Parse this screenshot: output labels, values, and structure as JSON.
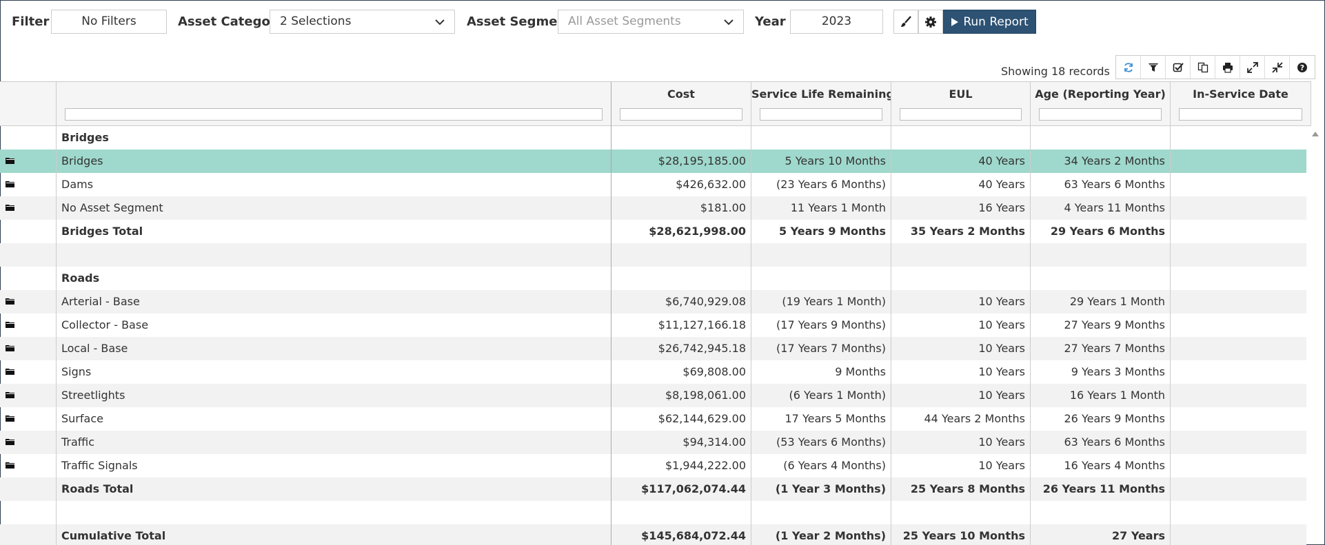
{
  "toolbar": {
    "filter_label": "Filter",
    "filter_value": "No Filters",
    "category_label": "Asset Category",
    "category_value": "2 Selections",
    "segment_label": "Asset Segment",
    "segment_placeholder": "All Asset Segments",
    "year_label": "Year",
    "year_value": "2023",
    "run_label": "Run Report",
    "icons": [
      "brush-icon",
      "gear-icon",
      "play-icon"
    ]
  },
  "records_text": "Showing 18 records",
  "grid_tools": [
    "refresh-icon",
    "filter-icon",
    "check-icon",
    "copy-icon",
    "print-icon",
    "expand-icon",
    "collapse-icon",
    "help-icon"
  ],
  "columns": [
    "",
    "Cost",
    "Service Life Remaining (...",
    "EUL",
    "Age (Reporting Year)",
    "In-Service Date"
  ],
  "rows": [
    {
      "kind": "group",
      "name": "Bridges",
      "cost": "",
      "slr": "",
      "eul": "",
      "age": "",
      "isd": ""
    },
    {
      "kind": "item",
      "name": "Bridges",
      "cost": "$28,195,185.00",
      "slr": "5 Years 10 Months",
      "eul": "40 Years",
      "age": "34 Years 2 Months",
      "isd": "",
      "selected": true
    },
    {
      "kind": "item",
      "name": "Dams",
      "cost": "$426,632.00",
      "slr": "(23 Years 6 Months)",
      "eul": "40 Years",
      "age": "63 Years 6 Months",
      "isd": ""
    },
    {
      "kind": "item",
      "name": "No Asset Segment",
      "cost": "$181.00",
      "slr": "11 Years 1 Month",
      "eul": "16 Years",
      "age": "4 Years 11 Months",
      "isd": ""
    },
    {
      "kind": "total",
      "name": "Bridges Total",
      "cost": "$28,621,998.00",
      "slr": "5 Years 9 Months",
      "eul": "35 Years 2 Months",
      "age": "29 Years 6 Months",
      "isd": ""
    },
    {
      "kind": "blank",
      "name": "",
      "cost": "",
      "slr": "",
      "eul": "",
      "age": "",
      "isd": ""
    },
    {
      "kind": "group",
      "name": "Roads",
      "cost": "",
      "slr": "",
      "eul": "",
      "age": "",
      "isd": ""
    },
    {
      "kind": "item",
      "name": "Arterial - Base",
      "cost": "$6,740,929.08",
      "slr": "(19 Years 1 Month)",
      "eul": "10 Years",
      "age": "29 Years 1 Month",
      "isd": ""
    },
    {
      "kind": "item",
      "name": "Collector - Base",
      "cost": "$11,127,166.18",
      "slr": "(17 Years 9 Months)",
      "eul": "10 Years",
      "age": "27 Years 9 Months",
      "isd": ""
    },
    {
      "kind": "item",
      "name": "Local - Base",
      "cost": "$26,742,945.18",
      "slr": "(17 Years 7 Months)",
      "eul": "10 Years",
      "age": "27 Years 7 Months",
      "isd": ""
    },
    {
      "kind": "item",
      "name": "Signs",
      "cost": "$69,808.00",
      "slr": "9 Months",
      "eul": "10 Years",
      "age": "9 Years 3 Months",
      "isd": ""
    },
    {
      "kind": "item",
      "name": "Streetlights",
      "cost": "$8,198,061.00",
      "slr": "(6 Years 1 Month)",
      "eul": "10 Years",
      "age": "16 Years 1 Month",
      "isd": ""
    },
    {
      "kind": "item",
      "name": "Surface",
      "cost": "$62,144,629.00",
      "slr": "17 Years 5 Months",
      "eul": "44 Years 2 Months",
      "age": "26 Years 9 Months",
      "isd": ""
    },
    {
      "kind": "item",
      "name": "Traffic",
      "cost": "$94,314.00",
      "slr": "(53 Years 6 Months)",
      "eul": "10 Years",
      "age": "63 Years 6 Months",
      "isd": ""
    },
    {
      "kind": "item",
      "name": "Traffic Signals",
      "cost": "$1,944,222.00",
      "slr": "(6 Years 4 Months)",
      "eul": "10 Years",
      "age": "16 Years 4 Months",
      "isd": ""
    },
    {
      "kind": "total",
      "name": "Roads Total",
      "cost": "$117,062,074.44",
      "slr": "(1 Year 3 Months)",
      "eul": "25 Years 8 Months",
      "age": "26 Years 11 Months",
      "isd": ""
    },
    {
      "kind": "blank",
      "name": "",
      "cost": "",
      "slr": "",
      "eul": "",
      "age": "",
      "isd": ""
    },
    {
      "kind": "total",
      "name": "Cumulative Total",
      "cost": "$145,684,072.44",
      "slr": "(1 Year 2 Months)",
      "eul": "25 Years 10 Months",
      "age": "27 Years",
      "isd": ""
    }
  ],
  "colors": {
    "header_bg": "#f5f5f5",
    "selected_row": "#9fd8cc",
    "alt_row": "#f2f2f2",
    "run_button": "#2d5273"
  }
}
